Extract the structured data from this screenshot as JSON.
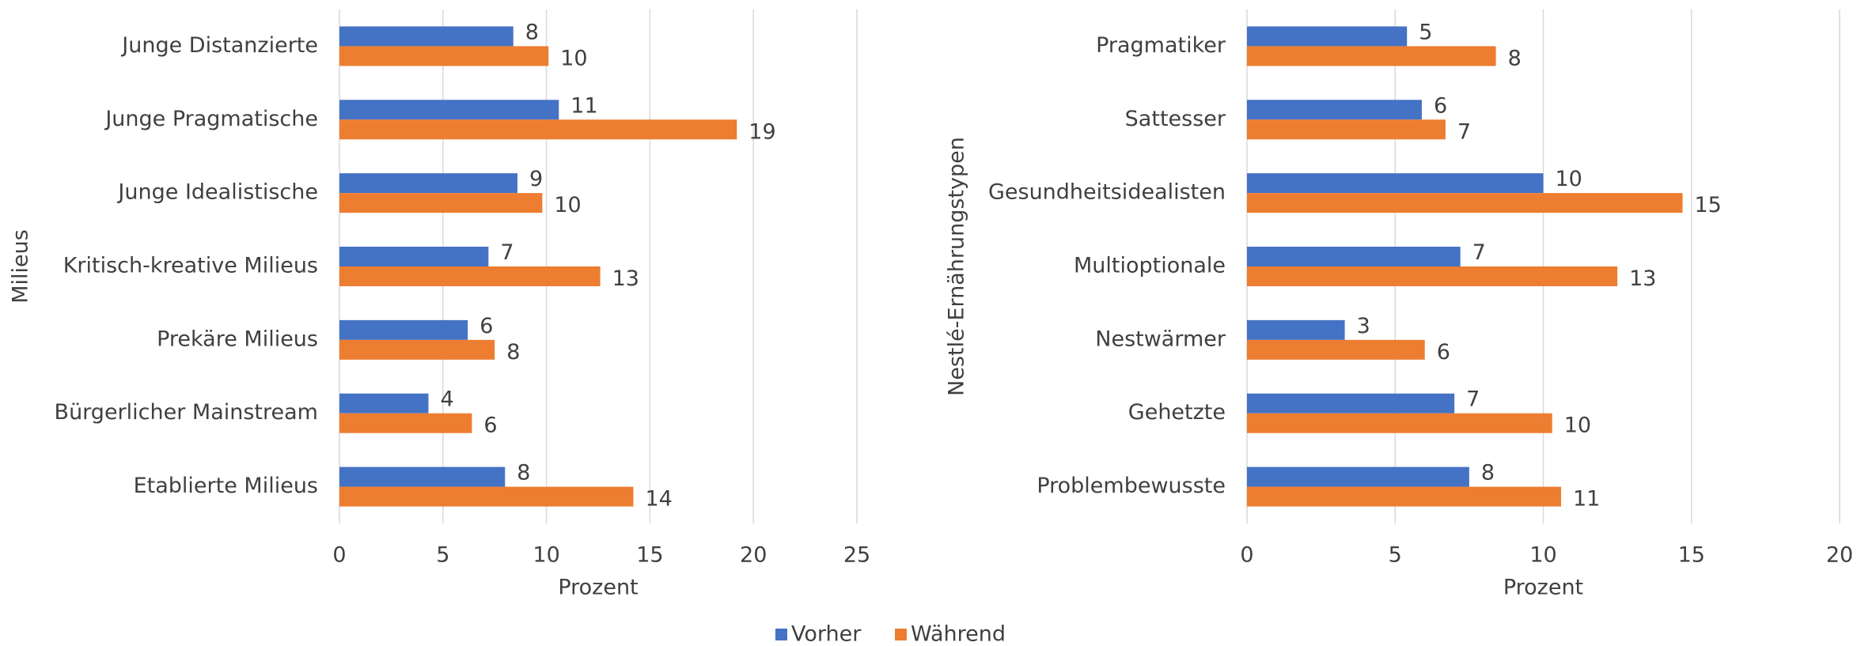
{
  "chart_data": [
    {
      "type": "barh",
      "ylabel": "Milieus",
      "xlabel": "Prozent",
      "categories": [
        "Junge Distanzierte",
        "Junge Pragmatische",
        "Junge Idealistische",
        "Kritisch-kreative Milieus",
        "Prekäre Milieus",
        "Bürgerlicher Mainstream",
        "Etablierte Milieus"
      ],
      "series": [
        {
          "name": "Vorher",
          "color": "#4472c4",
          "values": [
            8.4,
            10.6,
            8.6,
            7.2,
            6.2,
            4.3,
            8.0
          ],
          "value_labels": [
            "8",
            "11",
            "9",
            "7",
            "6",
            "4",
            "8"
          ]
        },
        {
          "name": "Während",
          "color": "#ed7d31",
          "values": [
            10.1,
            19.2,
            9.8,
            12.6,
            7.5,
            6.4,
            14.2
          ],
          "value_labels": [
            "10",
            "19",
            "10",
            "13",
            "8",
            "6",
            "14"
          ]
        }
      ],
      "xlim": [
        0,
        25
      ],
      "xticks": [
        0,
        5,
        10,
        15,
        20,
        25
      ],
      "grid": true
    },
    {
      "type": "barh",
      "ylabel": "Nestlé-Ernährungstypen",
      "xlabel": "Prozent",
      "categories": [
        "Pragmatiker",
        "Sattesser",
        "Gesundheitsidealisten",
        "Multioptionale",
        "Nestwärmer",
        "Gehetzte",
        "Problembewusste"
      ],
      "series": [
        {
          "color": "#4472c4",
          "values": [
            5.4,
            5.9,
            10.0,
            7.2,
            3.3,
            7.0,
            7.5
          ],
          "value_labels": [
            "5",
            "6",
            "10",
            "7",
            "3",
            "7",
            "8"
          ]
        },
        {
          "color": "#ed7d31",
          "values": [
            8.4,
            6.7,
            14.7,
            12.5,
            6.0,
            10.3,
            10.6
          ],
          "value_labels": [
            "8",
            "7",
            "15",
            "13",
            "6",
            "10",
            "11"
          ]
        }
      ],
      "xlim": [
        0,
        20
      ],
      "xticks": [
        0,
        5,
        10,
        15,
        20
      ],
      "grid": true
    }
  ]
}
